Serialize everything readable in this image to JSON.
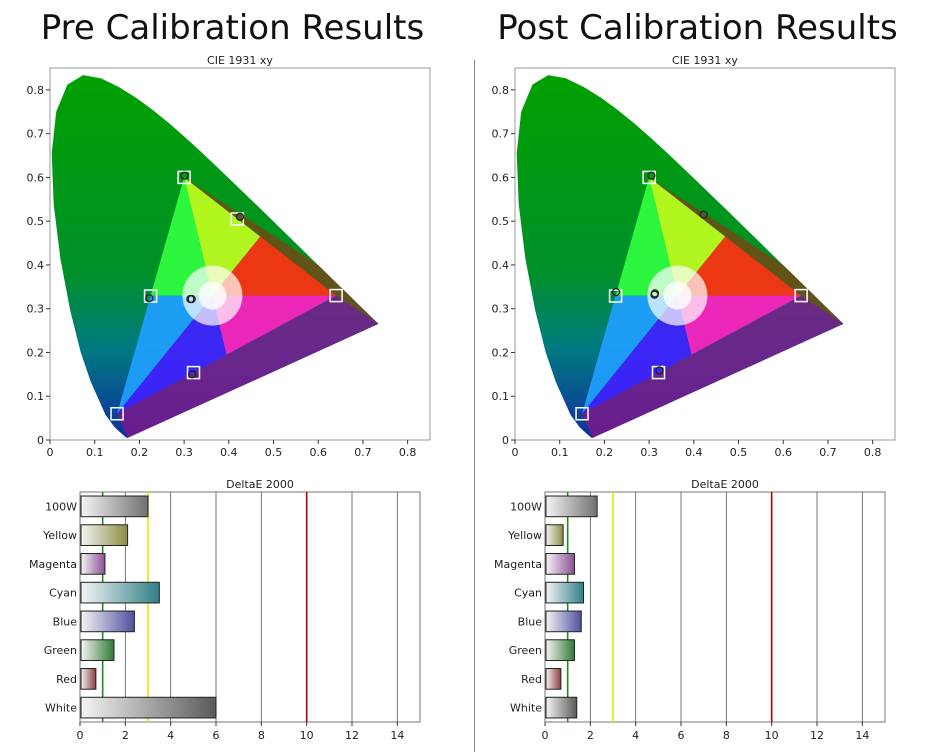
{
  "panels": [
    {
      "title": "Pre Calibration Results",
      "cie_title": "CIE 1931 xy",
      "delta_title": "DeltaE 2000"
    },
    {
      "title": "Post Calibration Results",
      "cie_title": "CIE 1931 xy",
      "delta_title": "DeltaE 2000"
    }
  ],
  "chart_data": [
    {
      "type": "scatter",
      "title": "CIE 1931 xy",
      "panel": "Pre Calibration Results",
      "xlim": [
        0,
        0.85
      ],
      "ylim": [
        0,
        0.85
      ],
      "x_ticks": [
        "0",
        "0.1",
        "0.2",
        "0.3",
        "0.4",
        "0.5",
        "0.6",
        "0.7",
        "0.8"
      ],
      "y_ticks": [
        "0",
        "0.1",
        "0.2",
        "0.3",
        "0.4",
        "0.5",
        "0.6",
        "0.7",
        "0.8"
      ],
      "target_gamut": [
        [
          0.64,
          0.33
        ],
        [
          0.3,
          0.6
        ],
        [
          0.15,
          0.06
        ]
      ],
      "targets": [
        [
          0.64,
          0.33
        ],
        [
          0.3,
          0.6
        ],
        [
          0.15,
          0.06
        ],
        [
          0.225,
          0.329
        ],
        [
          0.321,
          0.154
        ],
        [
          0.419,
          0.505
        ],
        [
          0.3127,
          0.329
        ]
      ],
      "measured": [
        [
          0.301,
          0.604
        ],
        [
          0.425,
          0.51
        ],
        [
          0.222,
          0.324
        ],
        [
          0.314,
          0.322
        ],
        [
          0.317,
          0.322
        ],
        [
          0.318,
          0.15
        ]
      ]
    },
    {
      "type": "bar",
      "title": "DeltaE 2000",
      "panel": "Pre Calibration Results",
      "categories": [
        "100W",
        "Yellow",
        "Magenta",
        "Cyan",
        "Blue",
        "Green",
        "Red",
        "White"
      ],
      "values": [
        3.0,
        2.1,
        1.1,
        3.5,
        2.4,
        1.5,
        0.7,
        6.0
      ],
      "colors": [
        "#707070",
        "#8c8c44",
        "#8a4f96",
        "#2f8088",
        "#5050a0",
        "#2f7a36",
        "#8a3d3d",
        "#5a5a5a"
      ],
      "xlim": [
        0,
        15
      ],
      "x_ticks": [
        "0",
        "2",
        "4",
        "6",
        "8",
        "10",
        "12",
        "14"
      ],
      "reference_lines": [
        {
          "value": 1,
          "color": "#1f8a1f"
        },
        {
          "value": 3,
          "color": "#e8e800"
        },
        {
          "value": 10,
          "color": "#b00000"
        }
      ]
    },
    {
      "type": "scatter",
      "title": "CIE 1931 xy",
      "panel": "Post Calibration Results",
      "xlim": [
        0,
        0.85
      ],
      "ylim": [
        0,
        0.85
      ],
      "x_ticks": [
        "0",
        "0.1",
        "0.2",
        "0.3",
        "0.4",
        "0.5",
        "0.6",
        "0.7",
        "0.8"
      ],
      "y_ticks": [
        "0",
        "0.1",
        "0.2",
        "0.3",
        "0.4",
        "0.5",
        "0.6",
        "0.7",
        "0.8"
      ],
      "target_gamut": [
        [
          0.64,
          0.33
        ],
        [
          0.3,
          0.6
        ],
        [
          0.15,
          0.06
        ]
      ],
      "targets": [
        [
          0.64,
          0.33
        ],
        [
          0.3,
          0.6
        ],
        [
          0.15,
          0.06
        ],
        [
          0.225,
          0.329
        ],
        [
          0.321,
          0.154
        ],
        [
          0.3127,
          0.329
        ]
      ],
      "measured": [
        [
          0.305,
          0.604
        ],
        [
          0.422,
          0.515
        ],
        [
          0.226,
          0.338
        ],
        [
          0.312,
          0.332
        ],
        [
          0.313,
          0.335
        ],
        [
          0.323,
          0.159
        ]
      ]
    },
    {
      "type": "bar",
      "title": "DeltaE 2000",
      "panel": "Post Calibration Results",
      "categories": [
        "100W",
        "Yellow",
        "Magenta",
        "Cyan",
        "Blue",
        "Green",
        "Red",
        "White"
      ],
      "values": [
        2.3,
        0.8,
        1.3,
        1.7,
        1.6,
        1.3,
        0.7,
        1.4
      ],
      "colors": [
        "#707070",
        "#8c8c44",
        "#8a4f96",
        "#2f8088",
        "#5050a0",
        "#2f7a36",
        "#8a3d3d",
        "#5a5a5a"
      ],
      "xlim": [
        0,
        15
      ],
      "x_ticks": [
        "0",
        "2",
        "4",
        "6",
        "8",
        "10",
        "12",
        "14"
      ],
      "reference_lines": [
        {
          "value": 1,
          "color": "#1f8a1f"
        },
        {
          "value": 3,
          "color": "#e8e800"
        },
        {
          "value": 10,
          "color": "#b00000"
        }
      ]
    }
  ]
}
